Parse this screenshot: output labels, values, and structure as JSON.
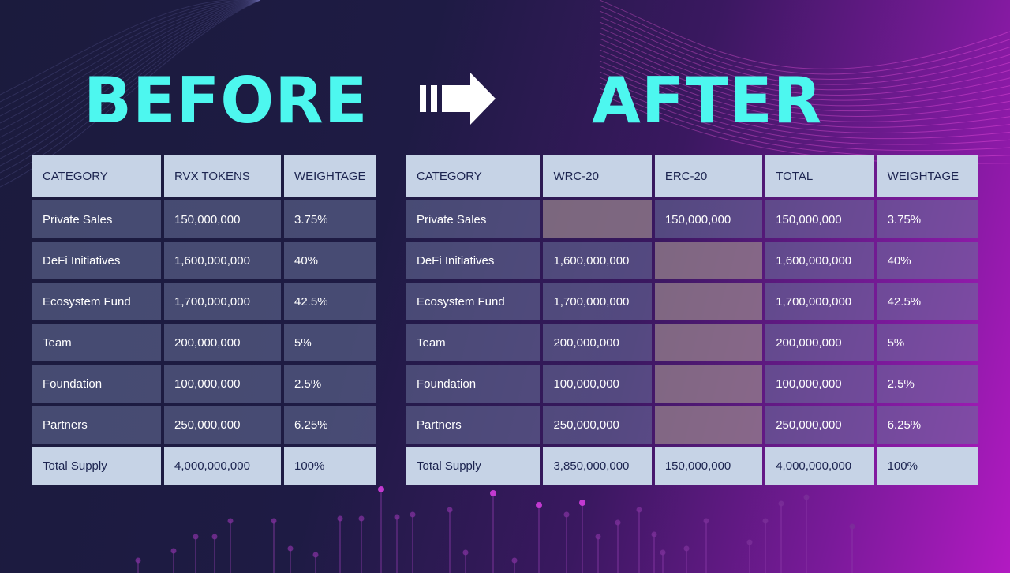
{
  "before": {
    "title": "BEFORE",
    "headers": [
      "CATEGORY",
      "RVX TOKENS",
      "WEIGHTAGE"
    ],
    "rows": [
      [
        "Private Sales",
        "150,000,000",
        "3.75%"
      ],
      [
        "DeFi Initiatives",
        "1,600,000,000",
        "40%"
      ],
      [
        "Ecosystem Fund",
        "1,700,000,000",
        "42.5%"
      ],
      [
        "Team",
        "200,000,000",
        "5%"
      ],
      [
        "Foundation",
        "100,000,000",
        "2.5%"
      ],
      [
        "Partners",
        "250,000,000",
        "6.25%"
      ]
    ],
    "total": [
      "Total Supply",
      "4,000,000,000",
      "100%"
    ]
  },
  "after": {
    "title": "AFTER",
    "headers": [
      "CATEGORY",
      "WRC-20",
      "ERC-20",
      "TOTAL",
      "WEIGHTAGE"
    ],
    "rows": [
      [
        "Private Sales",
        "",
        "150,000,000",
        "150,000,000",
        "3.75%"
      ],
      [
        "DeFi Initiatives",
        "1,600,000,000",
        "",
        "1,600,000,000",
        "40%"
      ],
      [
        "Ecosystem Fund",
        "1,700,000,000",
        "",
        "1,700,000,000",
        "42.5%"
      ],
      [
        "Team",
        "200,000,000",
        "",
        "200,000,000",
        "5%"
      ],
      [
        "Foundation",
        "100,000,000",
        "",
        "100,000,000",
        "2.5%"
      ],
      [
        "Partners",
        "250,000,000",
        "",
        "250,000,000",
        "6.25%"
      ]
    ],
    "total": [
      "Total Supply",
      "3,850,000,000",
      "150,000,000",
      "4,000,000,000",
      "100%"
    ]
  },
  "colors": {
    "headline": "#4df7ef",
    "header_cell": "#c6d3e6",
    "header_text": "#1c2450",
    "body_cell": "#5f6890",
    "empty_cell": "#8a7585",
    "accent_magenta": "#b21ac2"
  }
}
